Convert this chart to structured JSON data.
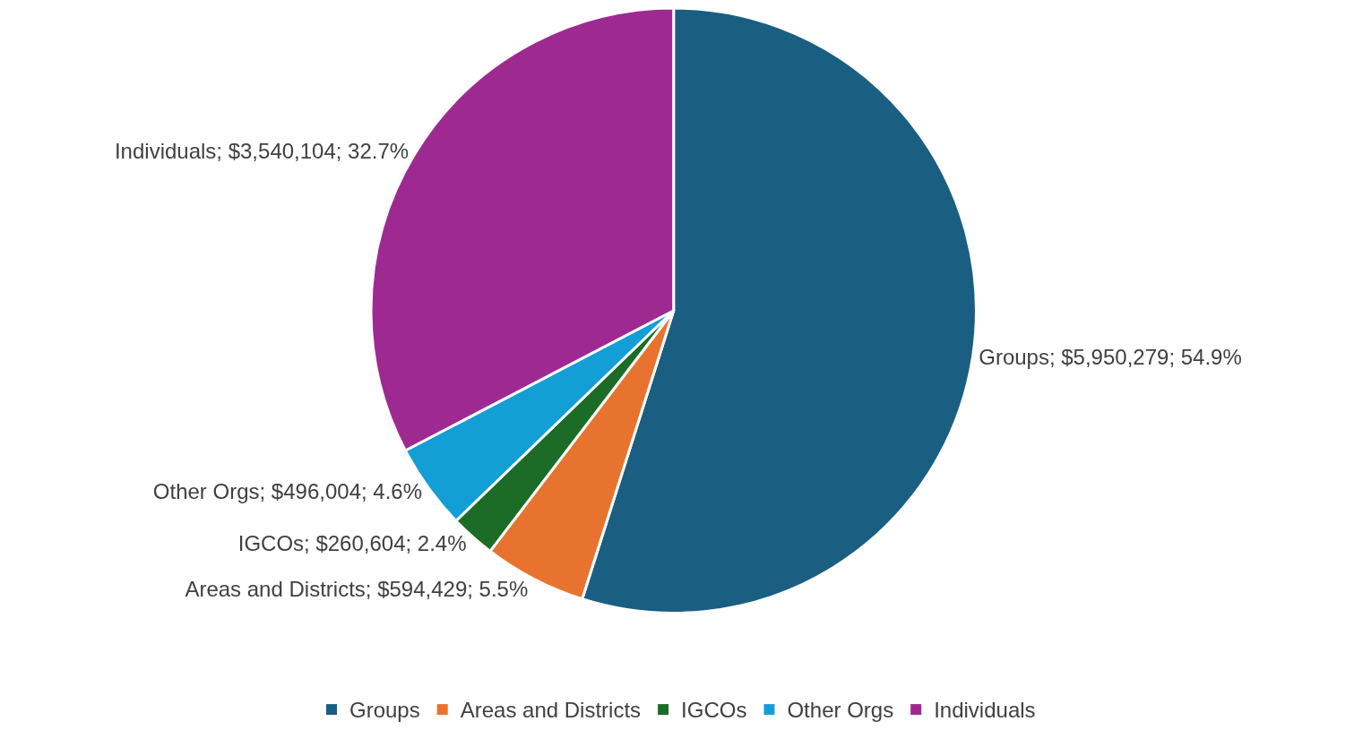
{
  "chart_data": {
    "type": "pie",
    "categories": [
      "Groups",
      "Areas and Districts",
      "IGCOs",
      "Other Orgs",
      "Individuals"
    ],
    "values": [
      5950279,
      594429,
      260604,
      496004,
      3540104
    ],
    "colors": [
      "#1a5f82",
      "#e8732f",
      "#1c6b27",
      "#139fd6",
      "#9e2a91"
    ],
    "value_labels": [
      "Groups; $5,950,279; 54.9%",
      "Areas and Districts; $594,429; 5.5%",
      "IGCOs; $260,604; 2.4%",
      "Other Orgs; $496,004; 4.6%",
      "Individuals; $3,540,104; 32.7%"
    ],
    "legend": "bottom"
  }
}
